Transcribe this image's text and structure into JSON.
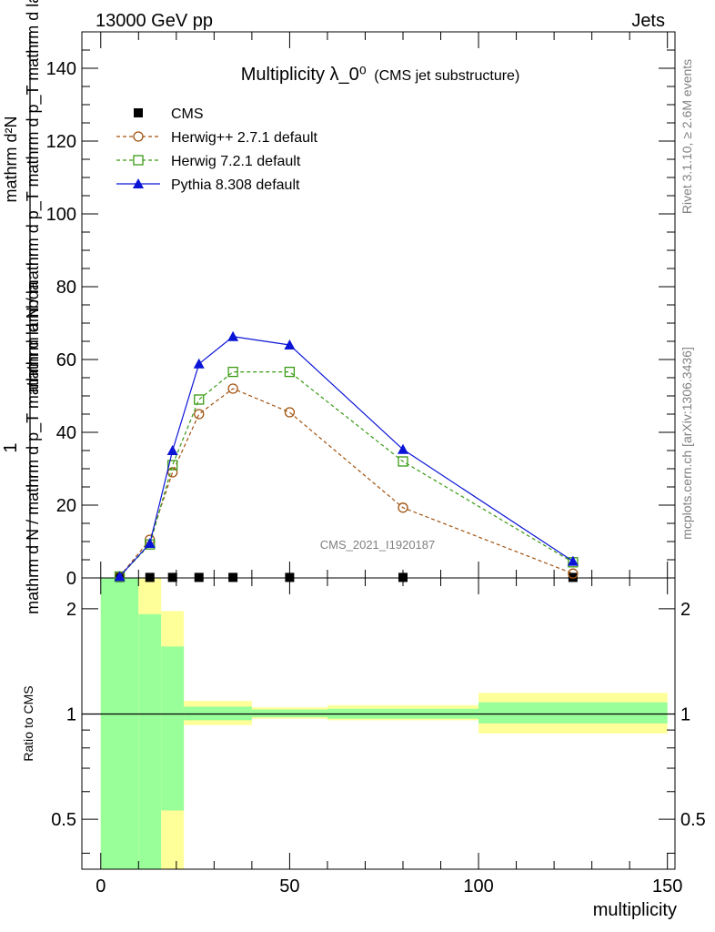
{
  "header": {
    "energy_label": "13000 GeV pp",
    "process_label": "Jets"
  },
  "side_texts": {
    "rivet": "Rivet 3.1.10, ≥ 2.6M events",
    "mcplots": "mcplots.cern.ch [arXiv:1306.3436]"
  },
  "chart_data": {
    "type": "line",
    "title": "Multiplicity λ_0⁰",
    "subtitle": "(CMS jet substructure)",
    "watermark": "CMS_2021_I1920187",
    "xlabel": "multiplicity",
    "ylabel_top": "1",
    "ylabel_main": "mathrm d N / mathrm d p_T mathrm d lambda",
    "ylabel_numerator": "mathrm d²N",
    "ylabel_denominator": "mathrm d N / mathrm d p_T mathrm d p_T mathrm d lambda",
    "xlim": [
      -5,
      152
    ],
    "ylim": [
      0,
      150
    ],
    "yticks": [
      0,
      20,
      40,
      60,
      80,
      100,
      120,
      140
    ],
    "xticks": [
      0,
      50,
      100,
      150
    ],
    "x": [
      5,
      13,
      19,
      26,
      35,
      50,
      80,
      125
    ],
    "series": [
      {
        "name": "CMS",
        "color": "#000000",
        "marker": "square-filled",
        "values": [
          0.15,
          0.15,
          0.15,
          0.15,
          0.15,
          0.15,
          0.15,
          0.15
        ]
      },
      {
        "name": "Herwig++ 2.7.1 default",
        "color": "#a0520f",
        "marker": "circle-open",
        "dash": true,
        "values": [
          0.4,
          10.5,
          29,
          45,
          52,
          45.5,
          19.3,
          1.2
        ]
      },
      {
        "name": "Herwig 7.2.1 default",
        "color": "#3a9a14",
        "marker": "square-open",
        "dash": true,
        "values": [
          0.4,
          9.2,
          31,
          49,
          56.6,
          56.6,
          32,
          4.3
        ]
      },
      {
        "name": "Pythia 8.308 default",
        "color": "#0a14d6",
        "marker": "triangle-filled",
        "dash": false,
        "values": [
          0.4,
          9.5,
          35,
          58.8,
          66.3,
          64,
          35.3,
          4.6
        ]
      }
    ],
    "ratio": {
      "ylabel": "Ratio to CMS",
      "yticks": [
        0.5,
        1,
        2
      ],
      "ytick_labels": [
        "0.5",
        "1",
        "2"
      ],
      "ylim": [
        0.36,
        2.45
      ],
      "log": true,
      "reference": 1,
      "bands": [
        {
          "x0": 0,
          "x1": 10,
          "green": [
            0.36,
            2.45
          ],
          "yellow": [
            0.36,
            2.45
          ]
        },
        {
          "x0": 10,
          "x1": 16,
          "green": [
            0.36,
            1.93
          ],
          "yellow": [
            0.36,
            2.45
          ]
        },
        {
          "x0": 16,
          "x1": 22,
          "green": [
            0.53,
            1.56
          ],
          "yellow": [
            0.36,
            1.97
          ]
        },
        {
          "x0": 22,
          "x1": 40,
          "green": [
            0.96,
            1.05
          ],
          "yellow": [
            0.93,
            1.09
          ]
        },
        {
          "x0": 40,
          "x1": 60,
          "green": [
            0.98,
            1.03
          ],
          "yellow": [
            0.97,
            1.045
          ]
        },
        {
          "x0": 60,
          "x1": 100,
          "green": [
            0.97,
            1.035
          ],
          "yellow": [
            0.96,
            1.06
          ]
        },
        {
          "x0": 100,
          "x1": 150,
          "green": [
            0.94,
            1.08
          ],
          "yellow": [
            0.88,
            1.15
          ]
        }
      ]
    }
  }
}
